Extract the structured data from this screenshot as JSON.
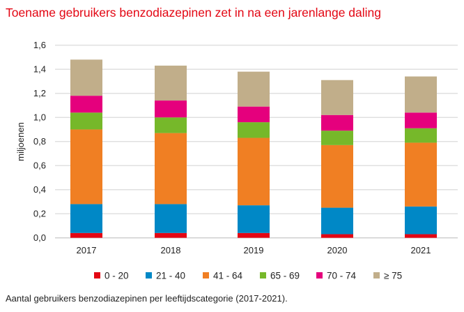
{
  "chart_data": {
    "type": "bar",
    "stacked": true,
    "title": "Toename gebruikers benzodiazepinen zet in na een jarenlange daling",
    "caption": "Aantal gebruikers benzodiazepinen per leeftijdscategorie (2017-2021).",
    "xlabel": "",
    "ylabel": "miljoenen",
    "ylim": [
      0,
      1.6
    ],
    "yticks": [
      "0,0",
      "0,2",
      "0,4",
      "0,6",
      "0,8",
      "1,0",
      "1,2",
      "1,4",
      "1,6"
    ],
    "ytick_values": [
      0,
      0.2,
      0.4,
      0.6,
      0.8,
      1.0,
      1.2,
      1.4,
      1.6
    ],
    "grid": true,
    "legend_position": "bottom",
    "categories": [
      "2017",
      "2018",
      "2019",
      "2020",
      "2021"
    ],
    "series": [
      {
        "name": "0 - 20",
        "color": "#e30613",
        "values": [
          0.04,
          0.04,
          0.04,
          0.03,
          0.03
        ]
      },
      {
        "name": "21 - 40",
        "color": "#0088c6",
        "values": [
          0.24,
          0.24,
          0.23,
          0.22,
          0.23
        ]
      },
      {
        "name": "41 - 64",
        "color": "#f07f23",
        "values": [
          0.62,
          0.59,
          0.56,
          0.52,
          0.53
        ]
      },
      {
        "name": "65 - 69",
        "color": "#76b82a",
        "values": [
          0.14,
          0.13,
          0.13,
          0.12,
          0.12
        ]
      },
      {
        "name": "70 - 74",
        "color": "#e5007d",
        "values": [
          0.14,
          0.14,
          0.13,
          0.13,
          0.13
        ]
      },
      {
        "name": "≥ 75",
        "color": "#c1ae8a",
        "values": [
          0.3,
          0.29,
          0.29,
          0.29,
          0.3
        ]
      }
    ]
  }
}
